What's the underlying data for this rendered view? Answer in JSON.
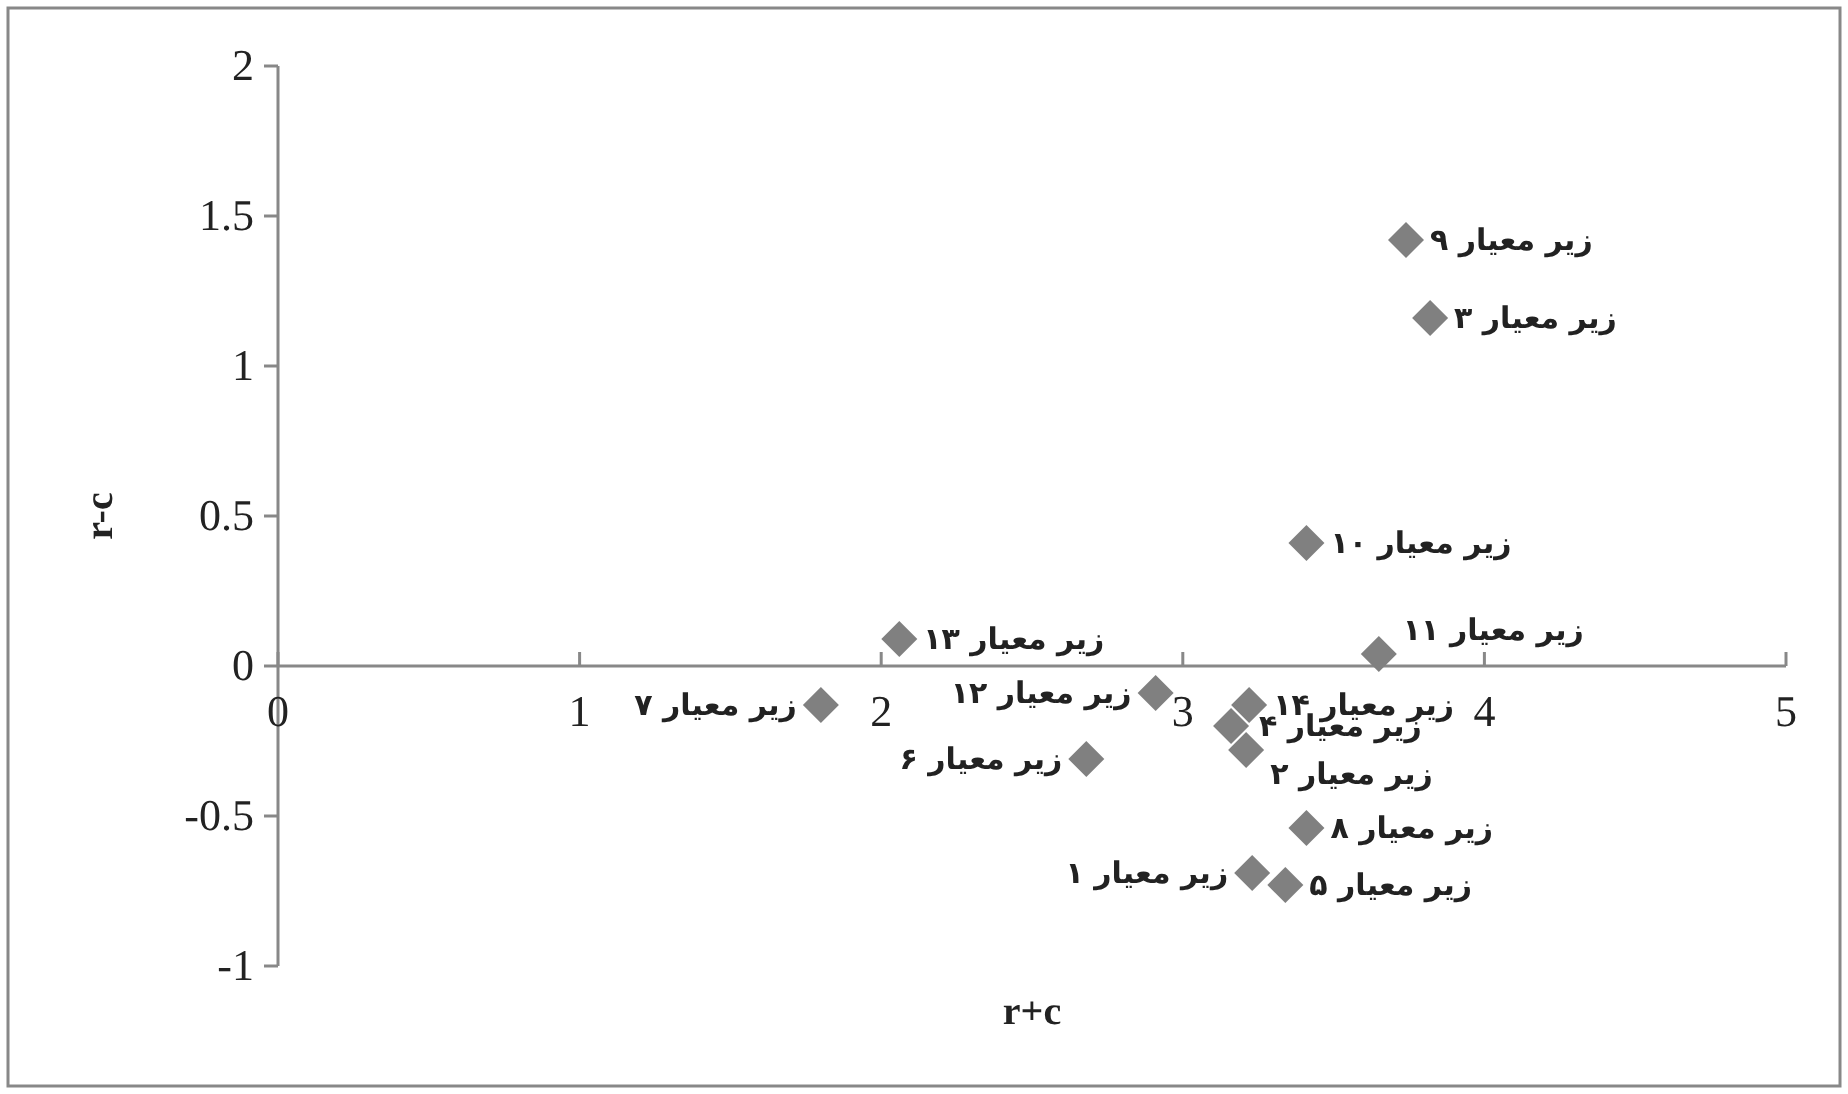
{
  "chart_data": {
    "type": "scatter",
    "xlabel": "r+c",
    "ylabel": "r-c",
    "marker": "diamond",
    "x": [
      3.74,
      3.82,
      3.41,
      2.06,
      2.91,
      3.65,
      1.8,
      3.22,
      3.16,
      3.21,
      2.68,
      3.41,
      3.23,
      3.34
    ],
    "series": [
      {
        "color": "#808080",
        "values": [
          1.42,
          1.16,
          0.41,
          0.09,
          -0.09,
          0.04,
          -0.13,
          -0.13,
          -0.2,
          -0.28,
          -0.31,
          -0.54,
          -0.69,
          -0.73
        ]
      }
    ],
    "xlim": [
      0,
      5
    ],
    "ylim": [
      -1,
      2
    ],
    "xticks": [
      0,
      1,
      2,
      3,
      4,
      5
    ],
    "yticks": [
      -1,
      -0.5,
      0,
      0.5,
      1,
      1.5,
      2
    ],
    "annotations": [
      {
        "text": "زیر معیار ۹",
        "x": 3.74,
        "y": 1.42
      },
      {
        "text": "زیر معیار ۳",
        "x": 3.82,
        "y": 1.16
      },
      {
        "text": "زیر معیار ۱۰",
        "x": 3.41,
        "y": 0.41
      },
      {
        "text": "زیر معیار ۱۳",
        "x": 2.06,
        "y": 0.09
      },
      {
        "text": "زیر معیار ۱۲",
        "x": 2.91,
        "y": -0.09
      },
      {
        "text": "زیر معیار ۱۱",
        "x": 3.65,
        "y": 0.04
      },
      {
        "text": "زیر معیار ۷",
        "x": 1.8,
        "y": -0.13
      },
      {
        "text": "زیر معیار ۱۴",
        "x": 3.22,
        "y": -0.13
      },
      {
        "text": "زیر معیار ۴",
        "x": 3.16,
        "y": -0.2
      },
      {
        "text": "زیر معیار ۲",
        "x": 3.21,
        "y": -0.28
      },
      {
        "text": "زیر معیار ۶",
        "x": 2.68,
        "y": -0.31
      },
      {
        "text": "زیر معیار ۸",
        "x": 3.41,
        "y": -0.54
      },
      {
        "text": "زیر معیار ۱",
        "x": 3.23,
        "y": -0.69
      },
      {
        "text": "زیر معیار ۵",
        "x": 3.34,
        "y": -0.73
      }
    ]
  }
}
